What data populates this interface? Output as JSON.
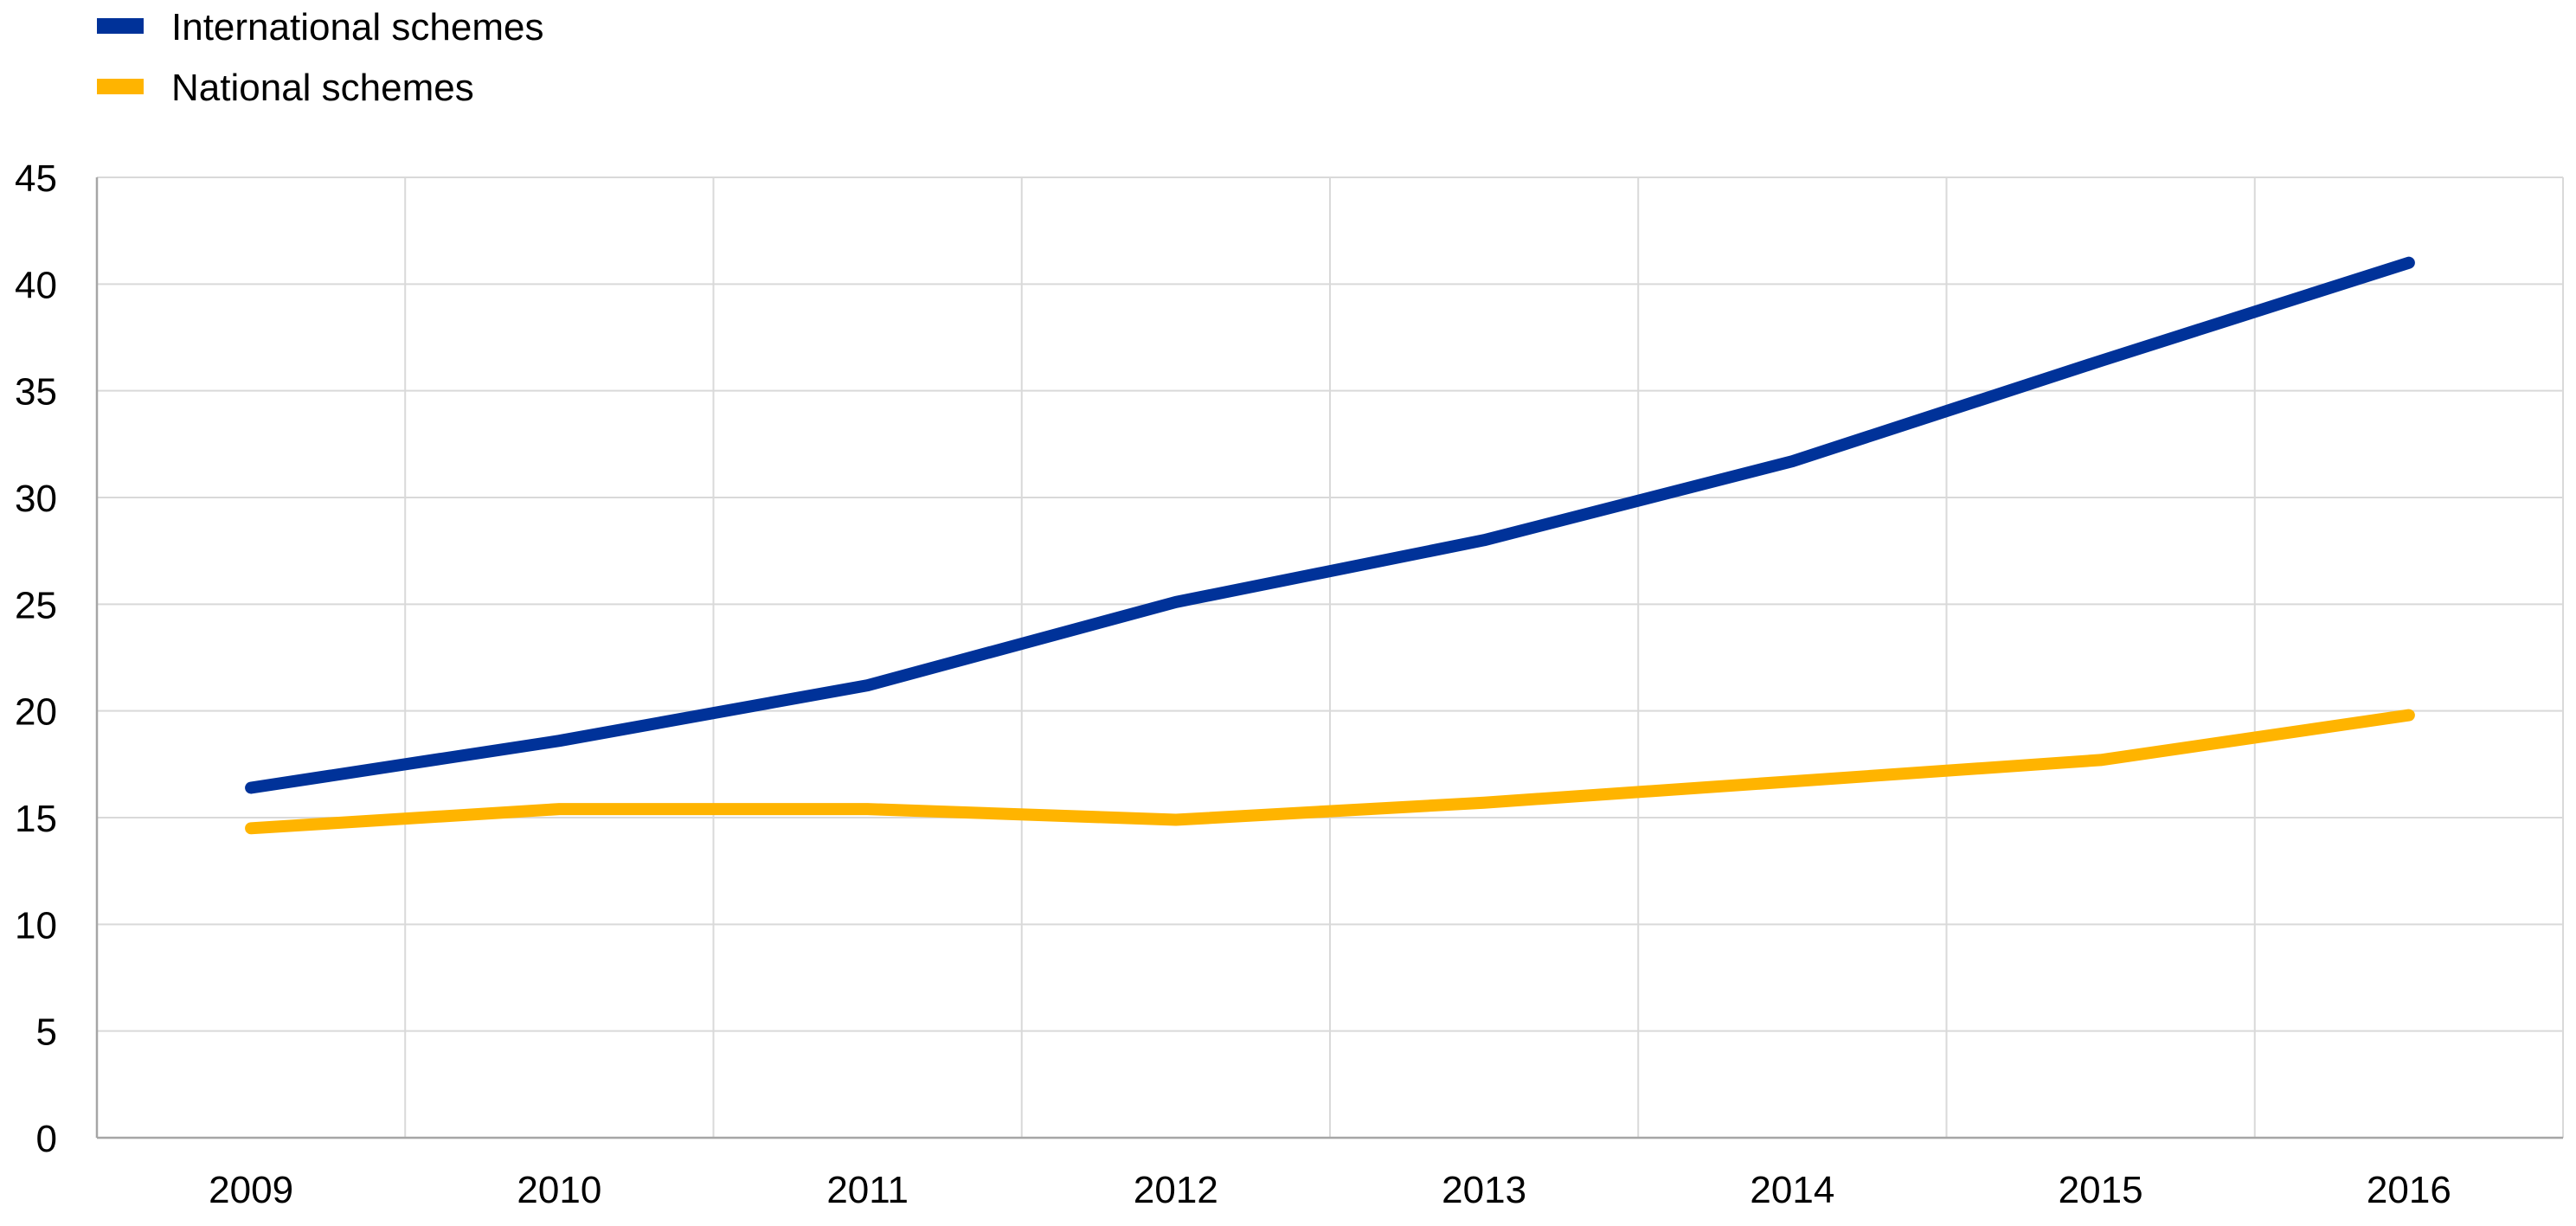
{
  "chart_data": {
    "type": "line",
    "title": "",
    "xlabel": "",
    "ylabel": "",
    "categories": [
      "2009",
      "2010",
      "2011",
      "2012",
      "2013",
      "2014",
      "2015",
      "2016"
    ],
    "ylim": [
      0,
      45
    ],
    "yticks": [
      0,
      5,
      10,
      15,
      20,
      25,
      30,
      35,
      40,
      45
    ],
    "grid": true,
    "legend_position": "top-left",
    "series": [
      {
        "name": "International schemes",
        "color": "#003299",
        "values": [
          16.4,
          18.6,
          21.2,
          25.1,
          28.0,
          31.7,
          36.4,
          41.0
        ]
      },
      {
        "name": "National schemes",
        "color": "#FFB400",
        "values": [
          14.5,
          15.4,
          15.4,
          14.9,
          15.7,
          16.7,
          17.7,
          19.8
        ]
      }
    ]
  }
}
